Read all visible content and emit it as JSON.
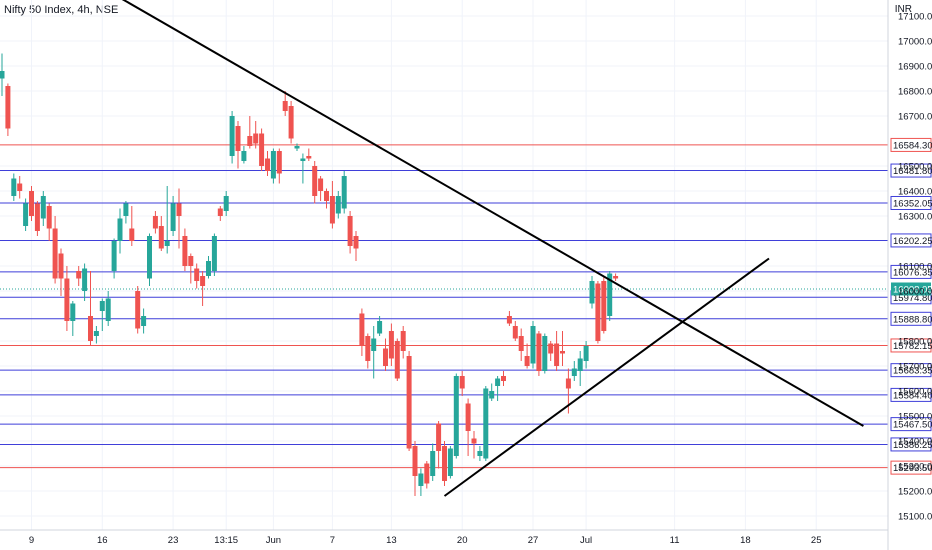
{
  "header": {
    "title": "Nifty 50 Index, 4h, NSE",
    "currency": "INR"
  },
  "chart_data": {
    "type": "candlestick",
    "title": "Nifty 50 Index, 4h, NSE",
    "ylabel": "INR",
    "ylim": [
      15040,
      17160
    ],
    "y_ticks": [
      17000,
      16900,
      16800,
      16400,
      16300,
      16100,
      15500,
      15200,
      15100
    ],
    "y_ticks_partial": [
      17100,
      16700,
      16500,
      16000,
      15800,
      15700,
      15600,
      15400,
      15300
    ],
    "x_ticks": [
      {
        "label": "9",
        "bar": 5
      },
      {
        "label": "16",
        "bar": 17
      },
      {
        "label": "23",
        "bar": 29
      },
      {
        "label": "13:15",
        "bar": 38
      },
      {
        "label": "Jun",
        "bar": 46
      },
      {
        "label": "7",
        "bar": 56
      },
      {
        "label": "13",
        "bar": 66
      },
      {
        "label": "20",
        "bar": 78
      },
      {
        "label": "27",
        "bar": 90
      },
      {
        "label": "Jul",
        "bar": 99
      },
      {
        "label": "11",
        "bar": 114
      },
      {
        "label": "18",
        "bar": 126
      },
      {
        "label": "25",
        "bar": 138
      }
    ],
    "candles": [
      [
        16850,
        16880,
        16950,
        16780
      ],
      [
        16820,
        16650,
        16830,
        16620
      ],
      [
        16380,
        16450,
        16470,
        16360
      ],
      [
        16430,
        16400,
        16460,
        16370
      ],
      [
        16260,
        16350,
        16370,
        16240
      ],
      [
        16400,
        16300,
        16420,
        16280
      ],
      [
        16350,
        16240,
        16360,
        16220
      ],
      [
        16290,
        16380,
        16400,
        16260
      ],
      [
        16340,
        16250,
        16350,
        16200
      ],
      [
        16250,
        16050,
        16300,
        16030
      ],
      [
        16150,
        16050,
        16170,
        15980
      ],
      [
        16050,
        15880,
        16100,
        15840
      ],
      [
        15880,
        15950,
        15960,
        15820
      ],
      [
        16080,
        16050,
        16100,
        16020
      ],
      [
        16000,
        16090,
        16110,
        15960
      ],
      [
        15900,
        15800,
        16080,
        15780
      ],
      [
        15820,
        15840,
        15860,
        15790
      ],
      [
        15920,
        15960,
        15970,
        15840
      ],
      [
        15880,
        15970,
        16000,
        15860
      ],
      [
        16080,
        16200,
        16210,
        16050
      ],
      [
        16200,
        16290,
        16330,
        16150
      ],
      [
        16300,
        16350,
        16360,
        16270
      ],
      [
        16250,
        16200,
        16340,
        16180
      ],
      [
        16000,
        15850,
        16020,
        15830
      ],
      [
        15860,
        15900,
        15930,
        15830
      ],
      [
        16050,
        16220,
        16230,
        16020
      ],
      [
        16300,
        16250,
        16320,
        16230
      ],
      [
        16260,
        16170,
        16300,
        16160
      ],
      [
        16180,
        16200,
        16420,
        16150
      ],
      [
        16240,
        16350,
        16380,
        16220
      ],
      [
        16350,
        16300,
        16410,
        16170
      ],
      [
        16220,
        16100,
        16250,
        16080
      ],
      [
        16140,
        16100,
        16150,
        16030
      ],
      [
        16090,
        16040,
        16110,
        16010
      ],
      [
        16060,
        16020,
        16080,
        15940
      ],
      [
        16060,
        16120,
        16140,
        16050
      ],
      [
        16080,
        16220,
        16230,
        16060
      ],
      [
        16330,
        16300,
        16340,
        16280
      ],
      [
        16320,
        16380,
        16400,
        16300
      ],
      [
        16540,
        16700,
        16720,
        16510
      ],
      [
        16660,
        16560,
        16680,
        16490
      ],
      [
        16520,
        16560,
        16580,
        16510
      ],
      [
        16620,
        16580,
        16700,
        16570
      ],
      [
        16630,
        16590,
        16680,
        16570
      ],
      [
        16630,
        16500,
        16650,
        16480
      ],
      [
        16530,
        16480,
        16560,
        16460
      ],
      [
        16450,
        16560,
        16570,
        16430
      ],
      [
        16560,
        16470,
        16570,
        16430
      ],
      [
        16760,
        16720,
        16800,
        16700
      ],
      [
        16740,
        16610,
        16760,
        16590
      ],
      [
        16570,
        16580,
        16590,
        16560
      ],
      [
        16520,
        16530,
        16550,
        16430
      ],
      [
        16540,
        16530,
        16570,
        16520
      ],
      [
        16500,
        16380,
        16520,
        16350
      ],
      [
        16450,
        16400,
        16460,
        16360
      ],
      [
        16400,
        16360,
        16410,
        16330
      ],
      [
        16380,
        16270,
        16440,
        16250
      ],
      [
        16310,
        16380,
        16400,
        16290
      ],
      [
        16330,
        16460,
        16480,
        16310
      ],
      [
        16300,
        16180,
        16320,
        16150
      ],
      [
        16220,
        16170,
        16240,
        16120
      ],
      [
        15910,
        15780,
        15930,
        15740
      ],
      [
        15820,
        15720,
        15830,
        15690
      ],
      [
        15760,
        15810,
        15860,
        15650
      ],
      [
        15830,
        15880,
        15900,
        15820
      ],
      [
        15770,
        15700,
        15810,
        15680
      ],
      [
        15840,
        15730,
        15870,
        15700
      ],
      [
        15800,
        15650,
        15810,
        15640
      ],
      [
        15840,
        15760,
        15860,
        15730
      ],
      [
        15740,
        15370,
        15760,
        15360
      ],
      [
        15380,
        15260,
        15400,
        15180
      ],
      [
        15220,
        15270,
        15290,
        15180
      ],
      [
        15310,
        15230,
        15320,
        15210
      ],
      [
        15260,
        15360,
        15390,
        15240
      ],
      [
        15470,
        15360,
        15480,
        15290
      ],
      [
        15380,
        15240,
        15400,
        15220
      ],
      [
        15260,
        15370,
        15380,
        15250
      ],
      [
        15340,
        15660,
        15670,
        15330
      ],
      [
        15660,
        15610,
        15680,
        15580
      ],
      [
        15550,
        15440,
        15570,
        15340
      ],
      [
        15410,
        15390,
        15440,
        15330
      ],
      [
        15340,
        15360,
        15380,
        15320
      ],
      [
        15330,
        15610,
        15620,
        15320
      ],
      [
        15570,
        15600,
        15630,
        15560
      ],
      [
        15620,
        15650,
        15660,
        15560
      ],
      [
        15660,
        15640,
        15680,
        15620
      ],
      [
        15900,
        15870,
        15920,
        15860
      ],
      [
        15860,
        15810,
        15880,
        15800
      ],
      [
        15820,
        15760,
        15850,
        15720
      ],
      [
        15740,
        15700,
        15790,
        15690
      ],
      [
        15710,
        15860,
        15880,
        15690
      ],
      [
        15830,
        15680,
        15840,
        15660
      ],
      [
        15680,
        15820,
        15830,
        15670
      ],
      [
        15790,
        15750,
        15800,
        15720
      ],
      [
        15790,
        15700,
        15840,
        15680
      ],
      [
        15760,
        15750,
        15840,
        15700
      ],
      [
        15650,
        15610,
        15690,
        15510
      ],
      [
        15660,
        15690,
        15720,
        15640
      ],
      [
        15680,
        15730,
        15760,
        15620
      ],
      [
        15720,
        15780,
        15800,
        15690
      ],
      [
        15950,
        16040,
        16060,
        15930
      ],
      [
        16030,
        15800,
        16040,
        15790
      ],
      [
        16040,
        15840,
        16060,
        15830
      ],
      [
        15900,
        16070,
        16080,
        15880
      ],
      [
        16060,
        16050,
        16070,
        16040
      ]
    ],
    "horizontal_levels": [
      {
        "value": 16584.3,
        "label": "16584.30",
        "color": "#ef5350"
      },
      {
        "value": 16481.8,
        "label": "16481.80",
        "color": "#3f3fd9"
      },
      {
        "value": 16352.05,
        "label": "16352.05",
        "color": "#3f3fd9"
      },
      {
        "value": 16202.25,
        "label": "16202.25",
        "color": "#3f3fd9"
      },
      {
        "value": 16076.35,
        "label": "16076.35",
        "color": "#3f3fd9"
      },
      {
        "value": 15974.8,
        "label": "15974.80",
        "color": "#3f3fd9"
      },
      {
        "value": 15888.8,
        "label": "15888.80",
        "color": "#3f3fd9"
      },
      {
        "value": 15782.15,
        "label": "15782.15",
        "color": "#ef5350"
      },
      {
        "value": 15683.35,
        "label": "15683.35",
        "color": "#3f3fd9"
      },
      {
        "value": 15584.4,
        "label": "15584.40",
        "color": "#3f3fd9"
      },
      {
        "value": 15467.5,
        "label": "15467.50",
        "color": "#3f3fd9"
      },
      {
        "value": 15386.25,
        "label": "15386.25",
        "color": "#3f3fd9"
      },
      {
        "value": 15293.5,
        "label": "15293.50",
        "color": "#ef5350"
      }
    ],
    "last_price": {
      "value": 16008.05,
      "label": "16008.05",
      "color": "#26a69a"
    },
    "trendlines": [
      {
        "name": "descending",
        "from": {
          "bar": 18,
          "value": 17200
        },
        "to": {
          "bar": 146,
          "value": 15460
        }
      },
      {
        "name": "ascending",
        "from": {
          "bar": 75,
          "value": 15180
        },
        "to": {
          "bar": 130,
          "value": 16130
        }
      }
    ],
    "colors": {
      "up": "#26a69a",
      "down": "#ef5350",
      "grid": "#f0f3fa",
      "axis": "#787b86",
      "trendline": "#000000"
    },
    "grid": true
  }
}
